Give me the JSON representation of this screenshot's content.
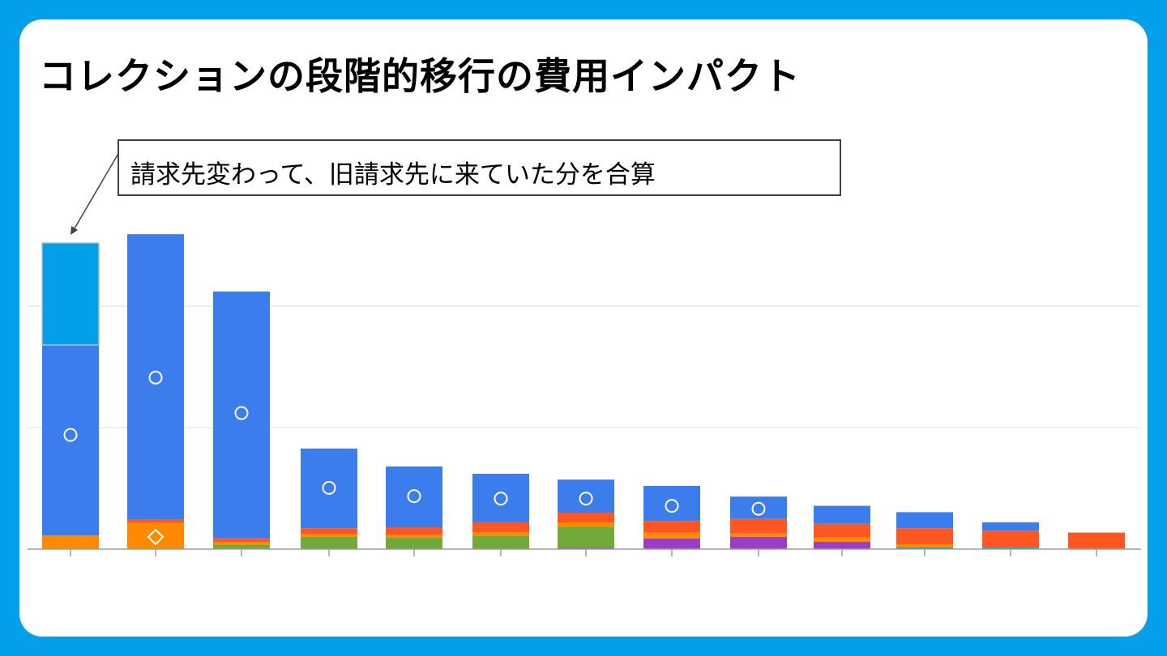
{
  "title": "コレクションの段階的移行の費用インパクト",
  "annotation": "請求先変わって、旧請求先に来ていた分を合算",
  "colors": {
    "frame": "#049fe9",
    "blue": "#3b7ded",
    "orange": "#ff8a00",
    "red": "#ff5722",
    "green": "#71a93a",
    "purple": "#9a3fc5",
    "teal": "#24a3a3",
    "highlight": "#049fe9",
    "grid": "#dadce0",
    "axis": "#9e9e9e"
  },
  "chart_data": {
    "type": "bar",
    "stacked": true,
    "categories": [
      "",
      "",
      "",
      "",
      "",
      "",
      "",
      "",
      "",
      "",
      "",
      "",
      ""
    ],
    "ylim": [
      0,
      6.5
    ],
    "grid": true,
    "series": [
      {
        "color": "purple",
        "values": [
          0,
          0,
          0,
          0,
          0,
          0,
          0.03,
          0.22,
          0.25,
          0.15,
          0,
          0,
          0
        ]
      },
      {
        "color": "teal",
        "values": [
          0,
          0,
          0,
          0,
          0,
          0,
          0,
          0,
          0,
          0,
          0.04,
          0.04,
          0
        ]
      },
      {
        "color": "green",
        "values": [
          0,
          0,
          0.09,
          0.25,
          0.24,
          0.28,
          0.43,
          0,
          0,
          0,
          0,
          0,
          0
        ]
      },
      {
        "color": "orange",
        "values": [
          0.28,
          0.55,
          0.06,
          0.06,
          0.05,
          0.07,
          0.09,
          0.12,
          0.07,
          0.09,
          0.06,
          0,
          0
        ]
      },
      {
        "color": "red",
        "values": [
          0,
          0.06,
          0.07,
          0.12,
          0.16,
          0.2,
          0.2,
          0.24,
          0.3,
          0.28,
          0.33,
          0.34,
          0.34
        ]
      },
      {
        "color": "blue",
        "values": [
          4.1,
          5.87,
          5.08,
          1.64,
          1.25,
          1.0,
          0.68,
          0.72,
          0.46,
          0.37,
          0.33,
          0.17,
          0
        ]
      }
    ],
    "highlight_box": {
      "index": 0,
      "from": 4.2,
      "to": 6.3
    },
    "markers": [
      {
        "index": 0,
        "shape": "circle",
        "value": 2.35
      },
      {
        "index": 1,
        "shape": "circle",
        "value": 3.53
      },
      {
        "index": 1,
        "shape": "diamond",
        "value": 0.25
      },
      {
        "index": 2,
        "shape": "circle",
        "value": 2.8
      },
      {
        "index": 3,
        "shape": "circle",
        "value": 1.26
      },
      {
        "index": 4,
        "shape": "circle",
        "value": 1.09
      },
      {
        "index": 5,
        "shape": "circle",
        "value": 1.04
      },
      {
        "index": 6,
        "shape": "circle",
        "value": 1.04
      },
      {
        "index": 7,
        "shape": "circle",
        "value": 0.89
      },
      {
        "index": 8,
        "shape": "circle",
        "value": 0.83
      }
    ]
  }
}
